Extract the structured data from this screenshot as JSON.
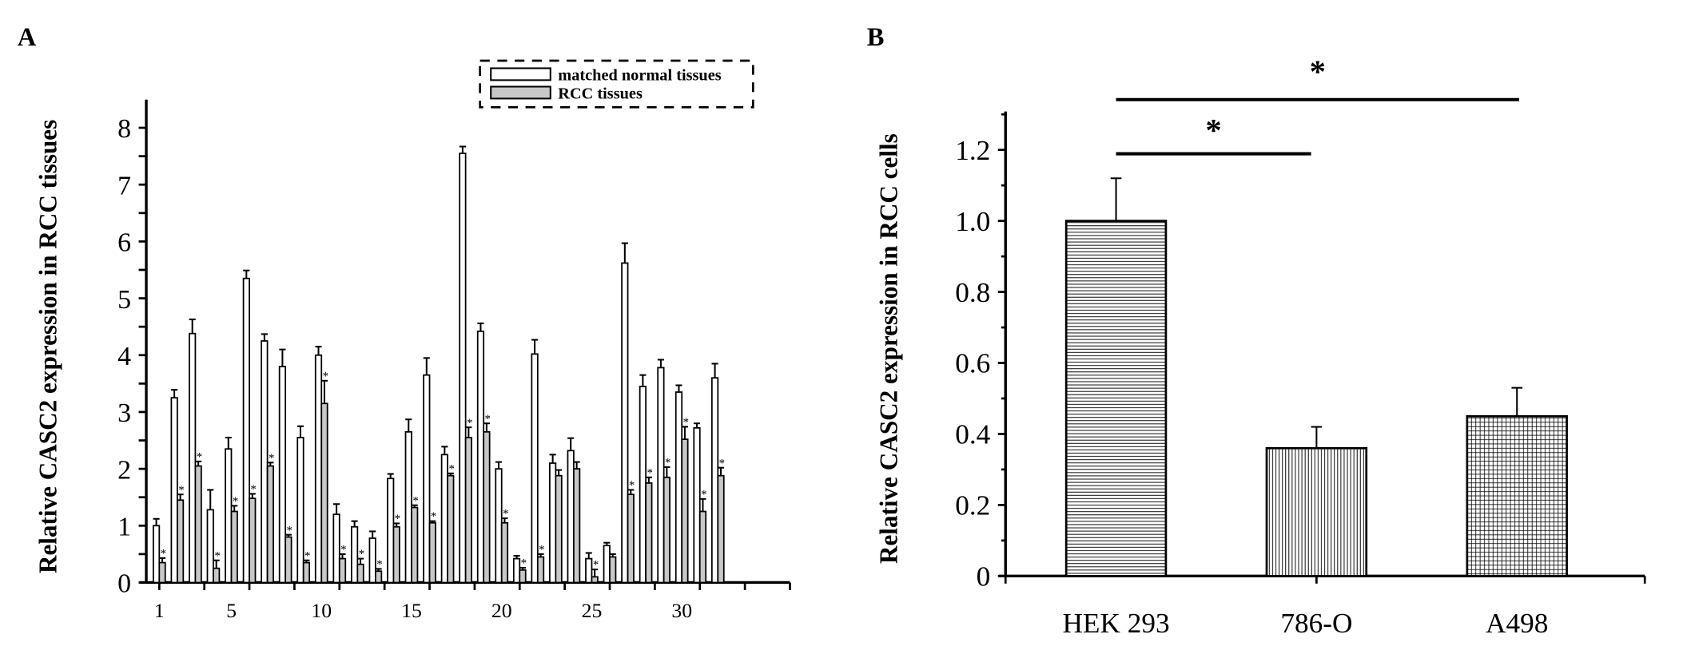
{
  "chart_data": [
    {
      "panel_label": "A",
      "type": "bar",
      "ylabel": "Relative CASC2 expression in RCC tissues",
      "xlabel": "",
      "ylim": [
        0,
        8
      ],
      "yticks": [
        "0",
        "1",
        "2",
        "3",
        "4",
        "5",
        "6",
        "7",
        "8"
      ],
      "xtick_labels": [
        {
          "sample": 1,
          "label": "1"
        },
        {
          "sample": 5,
          "label": "5"
        },
        {
          "sample": 10,
          "label": "10"
        },
        {
          "sample": 15,
          "label": "15"
        },
        {
          "sample": 20,
          "label": "20"
        },
        {
          "sample": 25,
          "label": "25"
        },
        {
          "sample": 30,
          "label": "30"
        }
      ],
      "legend": {
        "placement": "top-right",
        "style": "dashed-box"
      },
      "series": [
        {
          "name": "matched normal tissues",
          "color": "#ffffff",
          "values": [
            1.0,
            3.25,
            4.38,
            1.28,
            2.35,
            5.35,
            4.25,
            3.8,
            2.55,
            4.0,
            1.2,
            0.98,
            0.78,
            1.83,
            2.65,
            3.65,
            2.25,
            7.55,
            4.42,
            2.0,
            0.42,
            4.02,
            2.1,
            2.32,
            0.42,
            0.65,
            5.62,
            3.45,
            3.78,
            3.35,
            2.72,
            3.6
          ],
          "errors": [
            0.12,
            0.14,
            0.25,
            0.35,
            0.2,
            0.14,
            0.12,
            0.3,
            0.2,
            0.15,
            0.18,
            0.1,
            0.12,
            0.08,
            0.22,
            0.3,
            0.14,
            0.12,
            0.14,
            0.12,
            0.05,
            0.25,
            0.15,
            0.22,
            0.1,
            0.05,
            0.35,
            0.2,
            0.14,
            0.12,
            0.08,
            0.25
          ]
        },
        {
          "name": "RCC tissues",
          "color": "#c8c8c8",
          "values": [
            0.35,
            1.45,
            2.05,
            0.25,
            1.25,
            1.48,
            2.05,
            0.8,
            0.35,
            3.15,
            0.42,
            0.32,
            0.2,
            0.98,
            1.32,
            1.05,
            1.88,
            2.55,
            2.65,
            1.05,
            0.22,
            0.45,
            1.88,
            2.0,
            0.1,
            0.45,
            1.55,
            1.75,
            1.85,
            2.52,
            1.25,
            1.88
          ],
          "errors": [
            0.08,
            0.1,
            0.08,
            0.14,
            0.1,
            0.08,
            0.06,
            0.04,
            0.04,
            0.4,
            0.08,
            0.1,
            0.04,
            0.06,
            0.04,
            0.03,
            0.04,
            0.18,
            0.15,
            0.08,
            0.04,
            0.05,
            0.1,
            0.12,
            0.13,
            0.05,
            0.08,
            0.1,
            0.18,
            0.22,
            0.22,
            0.14
          ],
          "significant": [
            true,
            true,
            true,
            true,
            true,
            true,
            true,
            true,
            true,
            true,
            true,
            true,
            true,
            true,
            true,
            true,
            true,
            true,
            true,
            true,
            true,
            true,
            false,
            false,
            true,
            false,
            true,
            true,
            true,
            true,
            true,
            true
          ]
        }
      ],
      "significance_marker": "*"
    },
    {
      "panel_label": "B",
      "type": "bar",
      "ylabel": "Relative CASC2 expression in RCC cells",
      "xlabel": "",
      "ylim": [
        0,
        1.3
      ],
      "yticks": [
        "0",
        "0.2",
        "0.4",
        "0.6",
        "0.8",
        "1.0",
        "1.2"
      ],
      "categories": [
        "HEK 293",
        "786-O",
        "A498"
      ],
      "values": [
        1.0,
        0.36,
        0.45
      ],
      "errors": [
        0.12,
        0.06,
        0.08
      ],
      "patterns": [
        "horizontal-lines",
        "vertical-lines",
        "grid"
      ],
      "comparisons": [
        {
          "from": "HEK 293",
          "to": "786-O",
          "label": "*"
        },
        {
          "from": "HEK 293",
          "to": "A498",
          "label": "*"
        }
      ]
    }
  ]
}
